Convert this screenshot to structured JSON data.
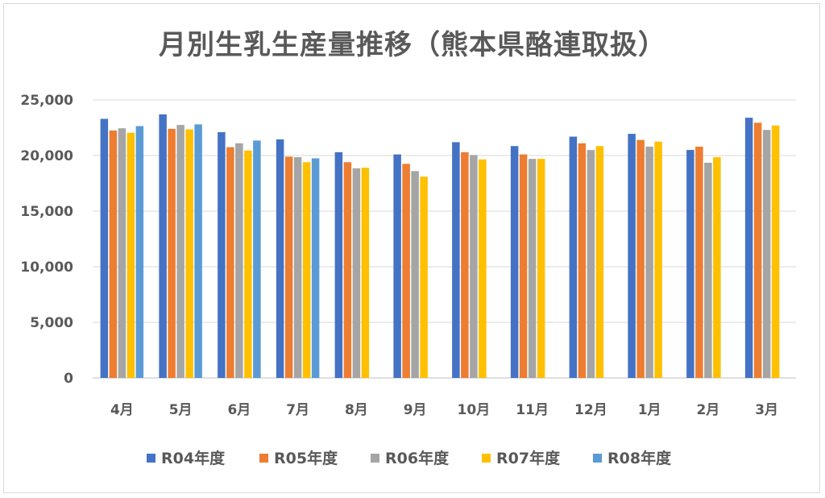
{
  "chart_data": {
    "type": "bar",
    "title": "月別生乳生産量推移（熊本県酪連取扱）",
    "xlabel": "",
    "ylabel": "",
    "categories": [
      "4月",
      "5月",
      "6月",
      "7月",
      "8月",
      "9月",
      "10月",
      "11月",
      "12月",
      "1月",
      "2月",
      "3月"
    ],
    "ylim": [
      0,
      25000
    ],
    "yticks": [
      0,
      5000,
      10000,
      15000,
      20000,
      25000
    ],
    "ytick_labels": [
      "0",
      "5,000",
      "10,000",
      "15,000",
      "20,000",
      "25,000"
    ],
    "grid": true,
    "legend_position": "bottom",
    "series": [
      {
        "name": "R04年度",
        "color": "#4472c4",
        "values": [
          23300,
          23700,
          22100,
          21450,
          20300,
          20100,
          21200,
          20850,
          21700,
          21950,
          20500,
          23400
        ]
      },
      {
        "name": "R05年度",
        "color": "#ed7d31",
        "values": [
          22250,
          22400,
          20750,
          19900,
          19400,
          19250,
          20300,
          20100,
          21100,
          21400,
          20800,
          22950
        ]
      },
      {
        "name": "R06年度",
        "color": "#a5a5a5",
        "values": [
          22450,
          22750,
          21100,
          19850,
          18850,
          18600,
          20050,
          19700,
          20500,
          20800,
          19350,
          22300
        ]
      },
      {
        "name": "R07年度",
        "color": "#ffc000",
        "values": [
          22050,
          22350,
          20450,
          19400,
          18900,
          18100,
          19650,
          19700,
          20850,
          21250,
          19850,
          22700
        ]
      },
      {
        "name": "R08年度",
        "color": "#5b9bd5",
        "values": [
          22650,
          22800,
          21350,
          19750,
          null,
          null,
          null,
          null,
          null,
          null,
          null,
          null
        ]
      }
    ]
  }
}
